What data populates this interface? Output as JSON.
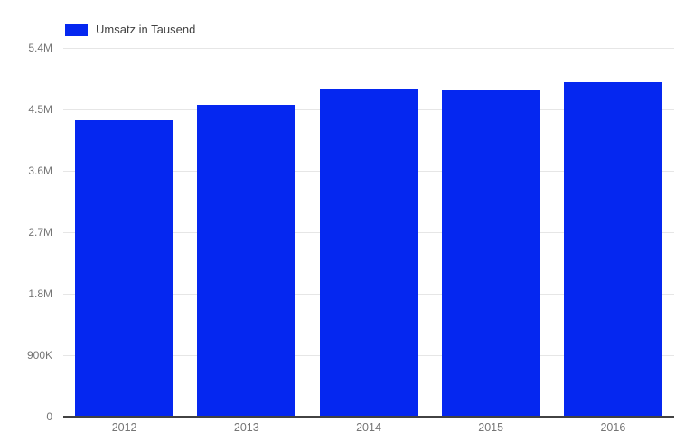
{
  "chart_data": {
    "type": "bar",
    "title": "",
    "categories": [
      "2012",
      "2013",
      "2014",
      "2015",
      "2016"
    ],
    "series": [
      {
        "name": "Umsatz in Tausend",
        "values": [
          4340000,
          4560000,
          4790000,
          4780000,
          4900000
        ]
      }
    ],
    "ylim": [
      0,
      5400000
    ],
    "yticks": [
      {
        "label": "0",
        "value": 0
      },
      {
        "label": "900K",
        "value": 900000
      },
      {
        "label": "1.8M",
        "value": 1800000
      },
      {
        "label": "2.7M",
        "value": 2700000
      },
      {
        "label": "3.6M",
        "value": 3600000
      },
      {
        "label": "4.5M",
        "value": 4500000
      },
      {
        "label": "5.4M",
        "value": 5400000
      }
    ],
    "grid": true,
    "legend_position": "top-left",
    "colors": {
      "bar": "#0527F0",
      "gridline": "#E6E6E6",
      "axis_line": "#424242",
      "tick_label": "#757575",
      "legend_text": "#424242",
      "background": "#FFFFFF"
    }
  }
}
